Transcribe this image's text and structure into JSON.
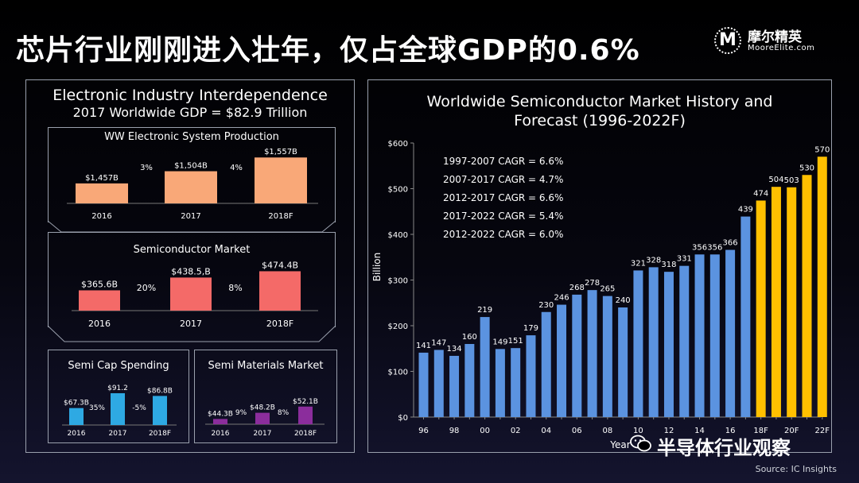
{
  "headline": "芯片行业刚刚进入壮年，仅占全球GDP的0.6%",
  "logo": {
    "cn": "摩尔精英",
    "en": "MooreElite.com",
    "mark": "M"
  },
  "left": {
    "title": "Electronic Industry Interdependence",
    "subtitle": "2017 Worldwide GDP = $82.9 Trillion",
    "sections": [
      {
        "title": "WW Electronic System Production",
        "color": "#f9a878",
        "categories": [
          "2016",
          "2017",
          "2018F"
        ],
        "values": [
          1457,
          1504,
          1557
        ],
        "labels": [
          "$1,457B",
          "$1,504B",
          "$1,557B"
        ],
        "growth": [
          "3%",
          "4%"
        ],
        "ylim": [
          1380,
          1570
        ]
      },
      {
        "title": "Semiconductor Market",
        "color": "#f46a68",
        "categories": [
          "2016",
          "2017",
          "2018F"
        ],
        "values": [
          365.6,
          438.5,
          474.4
        ],
        "labels": [
          "$365.6B",
          "$438.5,B",
          "$474.4B"
        ],
        "growth": [
          "20%",
          "8%"
        ],
        "ylim": [
          250,
          490
        ]
      },
      {
        "title": "Semi Cap Spending",
        "color": "#2ea9e3",
        "categories": [
          "2016",
          "2017",
          "2018F"
        ],
        "values": [
          67.3,
          91.2,
          86.8
        ],
        "labels": [
          "$67.3B",
          "$91.2",
          "$86.8B"
        ],
        "growth": [
          "35%",
          "-5%"
        ],
        "ylim": [
          40,
          95
        ]
      },
      {
        "title": "Semi Materials Market",
        "color": "#8b2d9c",
        "categories": [
          "2016",
          "2017",
          "2018F"
        ],
        "values": [
          44.3,
          48.2,
          52.1
        ],
        "labels": [
          "$44.3B",
          "$48.2B",
          "$52.1B"
        ],
        "growth": [
          "9%",
          "8%"
        ],
        "ylim": [
          41,
          54
        ]
      }
    ]
  },
  "right": {
    "title_line1": "Worldwide Semiconductor Market History and",
    "title_line2": "Forecast (1996-2022F)",
    "cagr": [
      "1997-2007 CAGR = 6.6%",
      "2007-2017 CAGR = 4.7%",
      "2012-2017 CAGR = 6.6%",
      "2017-2022 CAGR = 5.4%",
      "2012-2022 CAGR = 6.0%"
    ]
  },
  "chart_data": {
    "type": "bar",
    "title": "Worldwide Semiconductor Market History and Forecast (1996-2022F)",
    "xlabel": "Year",
    "ylabel": "Billion",
    "ylim": [
      0,
      600
    ],
    "yticks": [
      0,
      100,
      200,
      300,
      400,
      500,
      600
    ],
    "ytick_labels": [
      "$0",
      "$100",
      "$200",
      "$300",
      "$400",
      "$500",
      "$600"
    ],
    "categories": [
      "96",
      "97",
      "98",
      "99",
      "00",
      "01",
      "02",
      "03",
      "04",
      "05",
      "06",
      "07",
      "08",
      "09",
      "10",
      "11",
      "12",
      "13",
      "14",
      "15",
      "16",
      "17",
      "18F",
      "19F",
      "20F",
      "21F",
      "22F"
    ],
    "xtick_labels": [
      "96",
      "",
      "98",
      "",
      "00",
      "",
      "02",
      "",
      "04",
      "",
      "06",
      "",
      "08",
      "",
      "10",
      "",
      "12",
      "",
      "14",
      "",
      "16",
      "",
      "18F",
      "",
      "20F",
      "",
      "22F"
    ],
    "values": [
      141,
      147,
      134,
      160,
      219,
      149,
      151,
      179,
      230,
      246,
      268,
      278,
      265,
      240,
      321,
      328,
      318,
      331,
      356,
      356,
      366,
      439,
      474,
      504,
      503,
      530,
      570
    ],
    "forecast_from_index": 22,
    "colors": {
      "history": "#5b93e0",
      "forecast": "#ffc000"
    },
    "grid": false
  },
  "footer": {
    "wechat": "半导体行业观察",
    "source": "Source: IC Insights"
  }
}
